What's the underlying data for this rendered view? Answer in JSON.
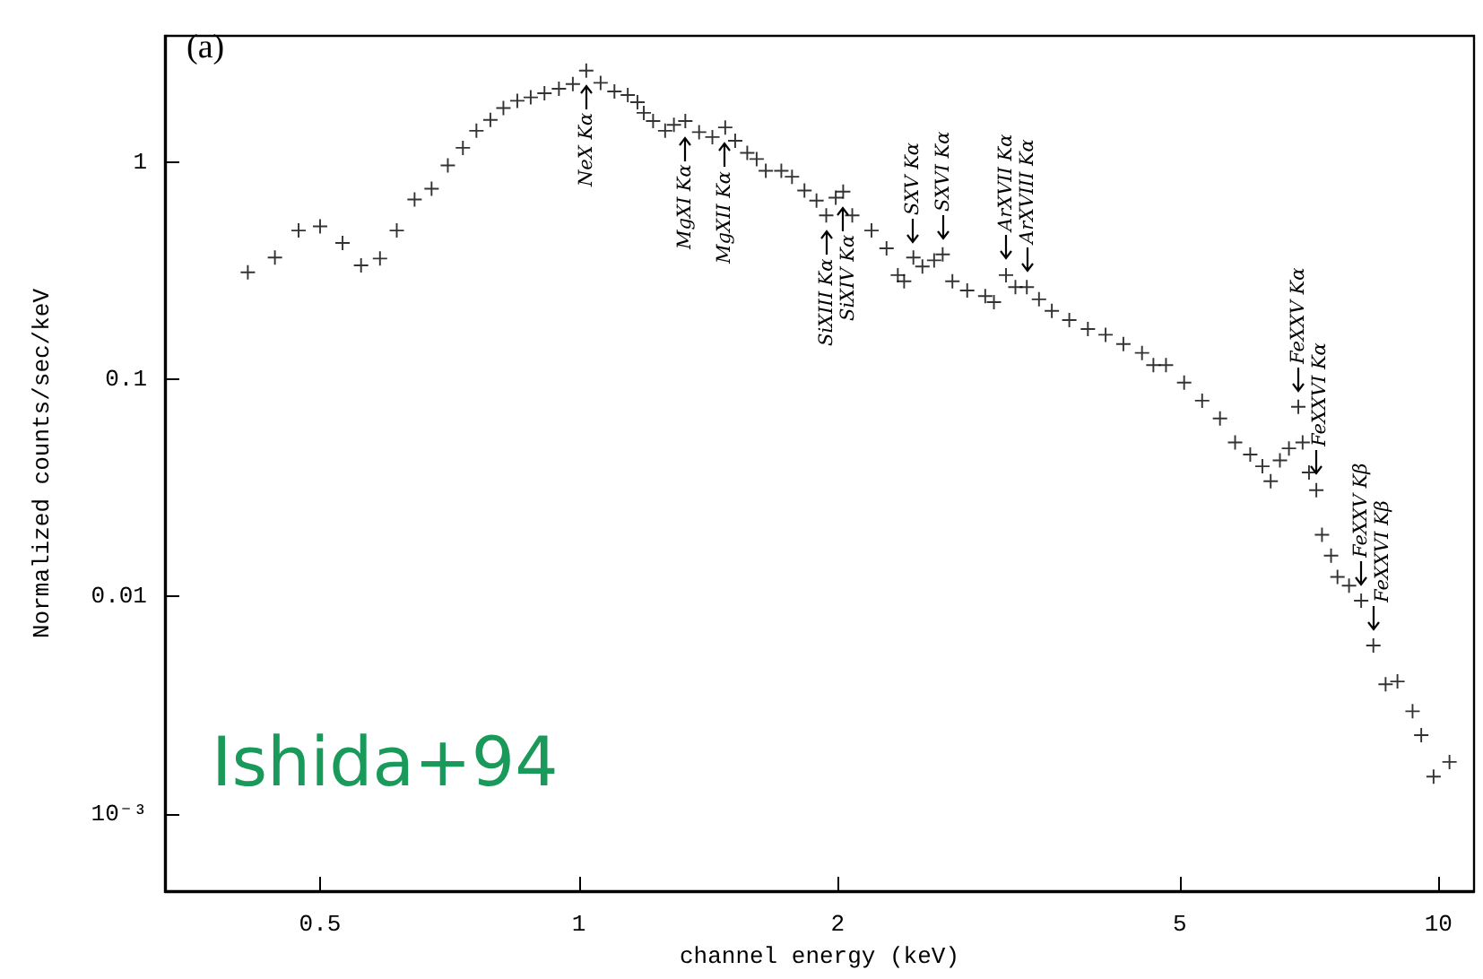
{
  "chart_data": {
    "type": "scatter",
    "xlabel": "channel energy (keV)",
    "ylabel": "Normalized counts/sec/keV",
    "log": "xy",
    "grid": false,
    "marker": "cross",
    "xlim": [
      0.33,
      11
    ],
    "xticks": [
      0.5,
      1,
      2,
      5,
      10
    ],
    "ylim": [
      0.00044,
      3.8
    ],
    "yticks": [
      {
        "value": 0.001,
        "label": "10⁻³"
      },
      0.01,
      0.1,
      1
    ],
    "series": [
      {
        "color": "#000000",
        "x": [
          0.412,
          0.443,
          0.472,
          0.5,
          0.531,
          0.558,
          0.587,
          0.614,
          0.644,
          0.674,
          0.704,
          0.733,
          0.76,
          0.789,
          0.817,
          0.848,
          0.879,
          0.912,
          0.948,
          0.984,
          1.02,
          1.06,
          1.1,
          1.14,
          1.17,
          1.19,
          1.22,
          1.26,
          1.29,
          1.33,
          1.38,
          1.43,
          1.48,
          1.52,
          1.57,
          1.61,
          1.65,
          1.72,
          1.77,
          1.83,
          1.89,
          1.94,
          1.99,
          2.03,
          2.08,
          2.19,
          2.28,
          2.35,
          2.39,
          2.45,
          2.51,
          2.59,
          2.65,
          2.72,
          2.83,
          2.97,
          3.04,
          3.14,
          3.22,
          3.32,
          3.43,
          3.55,
          3.72,
          3.91,
          4.1,
          4.3,
          4.52,
          4.66,
          4.82,
          5.06,
          5.31,
          5.57,
          5.8,
          6.04,
          6.24,
          6.38,
          6.54,
          6.7,
          6.87,
          6.95,
          7.07,
          7.21,
          7.32,
          7.5,
          7.63,
          7.87,
          8.13,
          8.4,
          8.68,
          8.96,
          9.33,
          9.55,
          9.87,
          10.3
        ],
        "values": [
          0.31,
          0.363,
          0.483,
          0.505,
          0.423,
          0.334,
          0.359,
          0.483,
          0.671,
          0.752,
          0.963,
          1.16,
          1.39,
          1.56,
          1.77,
          1.91,
          1.98,
          2.07,
          2.17,
          2.28,
          2.63,
          2.31,
          2.11,
          2.03,
          1.88,
          1.68,
          1.54,
          1.39,
          1.48,
          1.54,
          1.37,
          1.3,
          1.44,
          1.25,
          1.1,
          1.03,
          0.91,
          0.91,
          0.854,
          0.738,
          0.663,
          0.567,
          0.684,
          0.729,
          0.567,
          0.483,
          0.4,
          0.301,
          0.282,
          0.363,
          0.33,
          0.352,
          0.375,
          0.282,
          0.256,
          0.241,
          0.226,
          0.301,
          0.265,
          0.265,
          0.233,
          0.206,
          0.187,
          0.17,
          0.16,
          0.145,
          0.132,
          0.116,
          0.116,
          0.0964,
          0.0796,
          0.0659,
          0.0511,
          0.045,
          0.0397,
          0.0339,
          0.0423,
          0.048,
          0.0746,
          0.0511,
          0.0372,
          0.0308,
          0.0192,
          0.0154,
          0.0123,
          0.0112,
          0.00955,
          0.00594,
          0.00394,
          0.00406,
          0.00296,
          0.0023,
          0.00148,
          0.00173
        ]
      }
    ],
    "annotations": [
      "(a)",
      "Ishida+94",
      {
        "text": "NeX Kα",
        "x": 1.02,
        "y": 2.63
      },
      {
        "text": "MgXI Kα",
        "x": 1.33,
        "y": 1.54
      },
      {
        "text": "MgXII Kα",
        "x": 1.48,
        "y": 1.44
      },
      {
        "text": "SiXIII Kα",
        "x": 1.94,
        "y": 0.567
      },
      {
        "text": "SiXIV Kα",
        "x": 2.03,
        "y": 0.729
      },
      {
        "text": "SXV Kα",
        "x": 2.45,
        "y": 0.363
      },
      {
        "text": "SXVI Kα",
        "x": 2.65,
        "y": 0.375
      },
      {
        "text": "ArXVII Kα",
        "x": 3.14,
        "y": 0.301
      },
      {
        "text": "ArXVIII Kα",
        "x": 3.32,
        "y": 0.265
      },
      {
        "text": "FeXXV Kα",
        "x": 6.87,
        "y": 0.0746
      },
      {
        "text": "FeXXVI Kα",
        "x": 7.21,
        "y": 0.0308
      },
      {
        "text": "FeXXV Kβ",
        "x": 8.13,
        "y": 0.00955
      },
      {
        "text": "FeXXVI Kβ",
        "x": 8.4,
        "y": 0.00594
      }
    ]
  }
}
